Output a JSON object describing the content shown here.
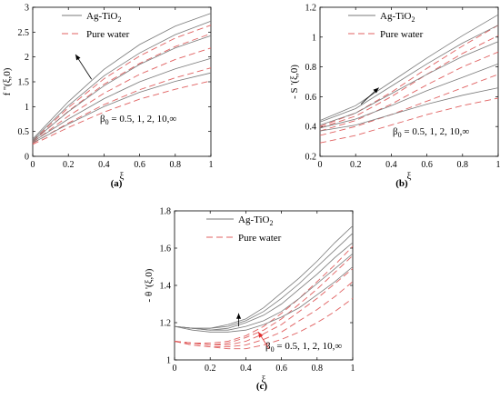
{
  "chart_data": [
    {
      "panel": "a",
      "type": "line",
      "caption": "(a)",
      "xlabel": "ξ",
      "ylabel": "f ''(ξ,0)",
      "xlim": [
        0,
        1
      ],
      "ylim": [
        0,
        3
      ],
      "xticks": [
        "0",
        "0.2",
        "0.4",
        "0.6",
        "0.8",
        "1"
      ],
      "yticks": [
        "0",
        "0.5",
        "1",
        "1.5",
        "2",
        "2.5",
        "3"
      ],
      "legend": {
        "placement": "top",
        "items": [
          {
            "label": "Ag-TiO",
            "subscript": "2",
            "style": "solid",
            "color": "#7a7a7a"
          },
          {
            "label": "Pure water",
            "style": "dashed",
            "color": "#e06060"
          }
        ]
      },
      "annotation": "β0 = 0.5, 1, 2, 10,∞",
      "annotation_parts": {
        "symbol": "β",
        "sub": "0",
        "text": " = 0.5, 1, 2, 10,∞"
      },
      "arrow": {
        "from": [
          0.33,
          1.55
        ],
        "to": [
          0.24,
          2.05
        ],
        "color": "#000000"
      },
      "x": [
        0,
        0.2,
        0.4,
        0.6,
        0.8,
        1.0
      ],
      "series": [
        {
          "group": "Ag-TiO2",
          "values": [
            0.35,
            1.1,
            1.75,
            2.25,
            2.62,
            2.88
          ]
        },
        {
          "group": "Ag-TiO2",
          "values": [
            0.33,
            1.02,
            1.62,
            2.08,
            2.45,
            2.72
          ]
        },
        {
          "group": "Ag-TiO2",
          "values": [
            0.31,
            0.9,
            1.42,
            1.85,
            2.18,
            2.43
          ]
        },
        {
          "group": "Ag-TiO2",
          "values": [
            0.29,
            0.75,
            1.16,
            1.5,
            1.76,
            1.97
          ]
        },
        {
          "group": "Ag-TiO2",
          "values": [
            0.27,
            0.65,
            1.0,
            1.29,
            1.51,
            1.68
          ]
        },
        {
          "group": "Pure water",
          "values": [
            0.31,
            0.98,
            1.56,
            2.02,
            2.38,
            2.64
          ]
        },
        {
          "group": "Pure water",
          "values": [
            0.3,
            0.91,
            1.45,
            1.87,
            2.21,
            2.47
          ]
        },
        {
          "group": "Pure water",
          "values": [
            0.28,
            0.81,
            1.27,
            1.65,
            1.95,
            2.18
          ]
        },
        {
          "group": "Pure water",
          "values": [
            0.26,
            0.67,
            1.04,
            1.34,
            1.58,
            1.78
          ]
        },
        {
          "group": "Pure water",
          "values": [
            0.24,
            0.58,
            0.89,
            1.15,
            1.35,
            1.52
          ]
        }
      ]
    },
    {
      "panel": "b",
      "type": "line",
      "caption": "(b)",
      "xlabel": "ξ",
      "ylabel": "- S '(ξ,0)",
      "xlim": [
        0,
        1
      ],
      "ylim": [
        0.2,
        1.2
      ],
      "xticks": [
        "0",
        "0.2",
        "0.4",
        "0.6",
        "0.8",
        "1"
      ],
      "yticks": [
        "0.2",
        "0.4",
        "0.6",
        "0.8",
        "1",
        "1.2"
      ],
      "legend": {
        "placement": "top",
        "items": [
          {
            "label": "Ag-TiO",
            "subscript": "2",
            "style": "solid",
            "color": "#7a7a7a"
          },
          {
            "label": "Pure water",
            "style": "dashed",
            "color": "#e06060"
          }
        ]
      },
      "annotation": "β0 = 0.5, 1, 2, 10,∞",
      "annotation_parts": {
        "symbol": "β",
        "sub": "0",
        "text": " = 0.5, 1, 2, 10,∞"
      },
      "arrow": {
        "from": [
          0.23,
          0.55
        ],
        "to": [
          0.33,
          0.66
        ],
        "color": "#000000"
      },
      "x": [
        0,
        0.2,
        0.4,
        0.6,
        0.8,
        1.0
      ],
      "series": [
        {
          "group": "Ag-TiO2",
          "values": [
            0.44,
            0.54,
            0.7,
            0.86,
            1.01,
            1.15
          ]
        },
        {
          "group": "Ag-TiO2",
          "values": [
            0.43,
            0.52,
            0.67,
            0.82,
            0.96,
            1.08
          ]
        },
        {
          "group": "Ag-TiO2",
          "values": [
            0.41,
            0.49,
            0.62,
            0.75,
            0.87,
            0.97
          ]
        },
        {
          "group": "Ag-TiO2",
          "values": [
            0.39,
            0.45,
            0.54,
            0.64,
            0.73,
            0.82
          ]
        },
        {
          "group": "Ag-TiO2",
          "values": [
            0.37,
            0.41,
            0.48,
            0.55,
            0.61,
            0.66
          ]
        },
        {
          "group": "Pure water",
          "values": [
            0.4,
            0.49,
            0.63,
            0.79,
            0.94,
            1.08
          ]
        },
        {
          "group": "Pure water",
          "values": [
            0.39,
            0.47,
            0.6,
            0.75,
            0.89,
            1.01
          ]
        },
        {
          "group": "Pure water",
          "values": [
            0.37,
            0.44,
            0.55,
            0.68,
            0.8,
            0.9
          ]
        },
        {
          "group": "Pure water",
          "values": [
            0.34,
            0.4,
            0.48,
            0.57,
            0.66,
            0.75
          ]
        },
        {
          "group": "Pure water",
          "values": [
            0.29,
            0.34,
            0.41,
            0.48,
            0.54,
            0.59
          ]
        }
      ]
    },
    {
      "panel": "c",
      "type": "line",
      "caption": "(c)",
      "xlabel": "ξ",
      "ylabel": "- θ '(ξ,0)",
      "xlim": [
        0,
        1
      ],
      "ylim": [
        1.0,
        1.8
      ],
      "xticks": [
        "0",
        "0.2",
        "0.4",
        "0.6",
        "0.8",
        "1"
      ],
      "yticks": [
        "1",
        "1.2",
        "1.4",
        "1.6",
        "1.8"
      ],
      "legend": {
        "placement": "top",
        "items": [
          {
            "label": "Ag-TiO",
            "subscript": "2",
            "style": "solid",
            "color": "#7a7a7a"
          },
          {
            "label": "Pure water",
            "style": "dashed",
            "color": "#e06060"
          }
        ]
      },
      "annotation": "β0 = 0.5, 1, 2, 10,∞",
      "annotation_parts": {
        "symbol": "β",
        "sub": "0",
        "text": " = 0.5, 1, 2, 10,∞"
      },
      "arrows": [
        {
          "from": [
            0.36,
            1.18
          ],
          "to": [
            0.36,
            1.25
          ],
          "color": "#000000"
        },
        {
          "from": [
            0.53,
            1.06
          ],
          "to": [
            0.47,
            1.15
          ],
          "color": "#e03030"
        }
      ],
      "x": [
        0,
        0.1,
        0.2,
        0.3,
        0.4,
        0.5,
        0.6,
        0.7,
        0.8,
        0.9,
        1.0
      ],
      "series": [
        {
          "group": "Ag-TiO2",
          "values": [
            1.18,
            1.17,
            1.17,
            1.19,
            1.22,
            1.28,
            1.36,
            1.44,
            1.53,
            1.63,
            1.72
          ]
        },
        {
          "group": "Ag-TiO2",
          "values": [
            1.18,
            1.17,
            1.17,
            1.18,
            1.21,
            1.26,
            1.33,
            1.41,
            1.5,
            1.59,
            1.68
          ]
        },
        {
          "group": "Ag-TiO2",
          "values": [
            1.18,
            1.17,
            1.16,
            1.17,
            1.2,
            1.24,
            1.3,
            1.38,
            1.46,
            1.55,
            1.63
          ]
        },
        {
          "group": "Ag-TiO2",
          "values": [
            1.18,
            1.17,
            1.16,
            1.16,
            1.18,
            1.21,
            1.26,
            1.33,
            1.41,
            1.49,
            1.57
          ]
        },
        {
          "group": "Ag-TiO2",
          "values": [
            1.18,
            1.16,
            1.15,
            1.15,
            1.16,
            1.19,
            1.23,
            1.28,
            1.35,
            1.42,
            1.5
          ]
        },
        {
          "group": "Pure water",
          "values": [
            1.1,
            1.09,
            1.09,
            1.1,
            1.13,
            1.18,
            1.25,
            1.33,
            1.42,
            1.51,
            1.61
          ]
        },
        {
          "group": "Pure water",
          "values": [
            1.1,
            1.09,
            1.08,
            1.09,
            1.12,
            1.16,
            1.22,
            1.3,
            1.38,
            1.47,
            1.56
          ]
        },
        {
          "group": "Pure water",
          "values": [
            1.1,
            1.09,
            1.08,
            1.08,
            1.1,
            1.14,
            1.19,
            1.26,
            1.33,
            1.41,
            1.49
          ]
        },
        {
          "group": "Pure water",
          "values": [
            1.1,
            1.08,
            1.07,
            1.07,
            1.08,
            1.11,
            1.15,
            1.21,
            1.27,
            1.34,
            1.42
          ]
        },
        {
          "group": "Pure water",
          "values": [
            1.1,
            1.08,
            1.07,
            1.06,
            1.06,
            1.08,
            1.11,
            1.15,
            1.2,
            1.26,
            1.33
          ]
        }
      ]
    }
  ]
}
